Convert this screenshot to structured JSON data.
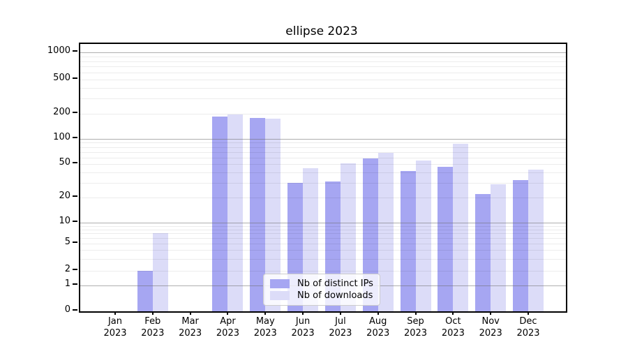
{
  "title": "ellipse 2023",
  "chart_data": {
    "type": "bar",
    "title": "ellipse 2023",
    "categories": [
      "Jan 2023",
      "Feb 2023",
      "Mar 2023",
      "Apr 2023",
      "May 2023",
      "Jun 2023",
      "Jul 2023",
      "Aug 2023",
      "Sep 2023",
      "Oct 2023",
      "Nov 2023",
      "Dec 2023"
    ],
    "series": [
      {
        "name": "Nb of distinct IPs",
        "color": "#a6a6f2",
        "values": [
          0,
          2,
          0,
          185,
          178,
          30,
          31,
          58,
          41,
          46,
          22,
          32
        ]
      },
      {
        "name": "Nb of downloads",
        "color": "#dcdcf8",
        "values": [
          0,
          7,
          0,
          195,
          175,
          45,
          51,
          68,
          55,
          88,
          29,
          43
        ]
      }
    ],
    "xlabel": "",
    "ylabel": "",
    "yscale": "symlog",
    "ylim": [
      0,
      1200
    ],
    "yticks": [
      0,
      1,
      2,
      5,
      10,
      20,
      50,
      100,
      200,
      500,
      1000
    ],
    "major_gridlines": [
      1,
      10,
      100,
      1000
    ],
    "minor_gridlines": [
      2,
      3,
      4,
      5,
      6,
      7,
      8,
      9,
      20,
      30,
      40,
      50,
      60,
      70,
      80,
      90,
      200,
      300,
      400,
      500,
      600,
      700,
      800,
      900
    ],
    "grid": true,
    "legend_position": "lower center"
  },
  "legend": {
    "items": [
      {
        "label": "Nb of distinct IPs",
        "color": "#a6a6f2"
      },
      {
        "label": "Nb of downloads",
        "color": "#dcdcf8"
      }
    ]
  }
}
